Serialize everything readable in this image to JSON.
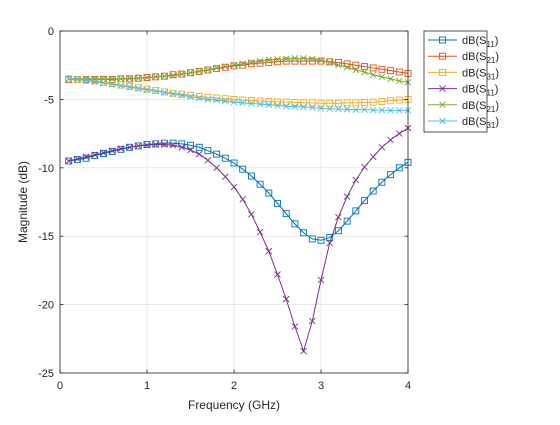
{
  "chart_data": {
    "type": "line",
    "xlabel": "Frequency (GHz)",
    "ylabel": "Magnitude (dB)",
    "xlim": [
      0,
      4
    ],
    "ylim": [
      -25,
      0
    ],
    "xticks": [
      0,
      1,
      2,
      3,
      4
    ],
    "yticks": [
      0,
      -5,
      -10,
      -15,
      -20,
      -25
    ],
    "grid": true,
    "legend_position": "outside-top-right",
    "x": [
      0.1,
      0.2,
      0.3,
      0.4,
      0.5,
      0.6,
      0.7,
      0.8,
      0.9,
      1.0,
      1.1,
      1.2,
      1.3,
      1.4,
      1.5,
      1.6,
      1.7,
      1.8,
      1.9,
      2.0,
      2.1,
      2.2,
      2.3,
      2.4,
      2.5,
      2.6,
      2.7,
      2.8,
      2.9,
      3.0,
      3.1,
      3.2,
      3.3,
      3.4,
      3.5,
      3.6,
      3.7,
      3.8,
      3.9,
      4.0
    ],
    "series": [
      {
        "name": "dB(S11)",
        "label_base": "dB(S",
        "label_sub": "11",
        "label_end": ")",
        "color": "#0072BD",
        "marker": "square",
        "values": [
          -9.5,
          -9.4,
          -9.3,
          -9.1,
          -8.95,
          -8.8,
          -8.65,
          -8.5,
          -8.4,
          -8.3,
          -8.25,
          -8.2,
          -8.2,
          -8.25,
          -8.35,
          -8.5,
          -8.75,
          -9.0,
          -9.3,
          -9.65,
          -10.1,
          -10.6,
          -11.2,
          -11.85,
          -12.6,
          -13.35,
          -14.1,
          -14.75,
          -15.2,
          -15.3,
          -15.1,
          -14.6,
          -13.9,
          -13.15,
          -12.4,
          -11.7,
          -11.05,
          -10.5,
          -10.0,
          -9.6
        ]
      },
      {
        "name": "dB(S21)",
        "label_base": "dB(S",
        "label_sub": "21",
        "label_end": ")",
        "color": "#D95319",
        "marker": "square",
        "values": [
          -3.55,
          -3.55,
          -3.55,
          -3.55,
          -3.55,
          -3.55,
          -3.5,
          -3.5,
          -3.45,
          -3.4,
          -3.35,
          -3.3,
          -3.2,
          -3.15,
          -3.05,
          -2.95,
          -2.85,
          -2.75,
          -2.65,
          -2.55,
          -2.5,
          -2.4,
          -2.35,
          -2.3,
          -2.25,
          -2.2,
          -2.2,
          -2.2,
          -2.2,
          -2.2,
          -2.25,
          -2.3,
          -2.4,
          -2.5,
          -2.6,
          -2.7,
          -2.8,
          -2.9,
          -3.0,
          -3.1
        ]
      },
      {
        "name": "dB(S31)",
        "label_base": "dB(S",
        "label_sub": "31",
        "label_end": ")",
        "color": "#EDB120",
        "marker": "square",
        "values": [
          -3.5,
          -3.55,
          -3.6,
          -3.65,
          -3.75,
          -3.85,
          -3.95,
          -4.05,
          -4.15,
          -4.25,
          -4.35,
          -4.45,
          -4.55,
          -4.62,
          -4.7,
          -4.78,
          -4.85,
          -4.9,
          -4.95,
          -5.0,
          -5.05,
          -5.08,
          -5.12,
          -5.15,
          -5.18,
          -5.2,
          -5.22,
          -5.25,
          -5.25,
          -5.28,
          -5.28,
          -5.28,
          -5.25,
          -5.25,
          -5.22,
          -5.2,
          -5.15,
          -5.1,
          -5.05,
          -5.0
        ]
      },
      {
        "name": "dB(S11)",
        "label_base": "dB(S",
        "label_sub": "11",
        "label_end": ")",
        "color": "#7E2F8E",
        "marker": "x",
        "values": [
          -9.5,
          -9.35,
          -9.2,
          -9.05,
          -8.9,
          -8.75,
          -8.6,
          -8.5,
          -8.4,
          -8.35,
          -8.3,
          -8.3,
          -8.35,
          -8.5,
          -8.7,
          -9.0,
          -9.45,
          -10.0,
          -10.65,
          -11.4,
          -12.3,
          -13.4,
          -14.7,
          -16.1,
          -17.8,
          -19.6,
          -21.6,
          -23.4,
          -21.2,
          -18.2,
          -15.5,
          -13.6,
          -12.1,
          -10.9,
          -9.95,
          -9.2,
          -8.5,
          -7.95,
          -7.5,
          -7.1
        ]
      },
      {
        "name": "dB(S21)",
        "label_base": "dB(S",
        "label_sub": "21",
        "label_end": ")",
        "color": "#77AC30",
        "marker": "x",
        "values": [
          -3.5,
          -3.5,
          -3.5,
          -3.5,
          -3.5,
          -3.5,
          -3.5,
          -3.45,
          -3.45,
          -3.4,
          -3.35,
          -3.3,
          -3.25,
          -3.15,
          -3.05,
          -2.95,
          -2.85,
          -2.7,
          -2.6,
          -2.5,
          -2.4,
          -2.3,
          -2.2,
          -2.12,
          -2.07,
          -2.03,
          -2.0,
          -2.0,
          -2.05,
          -2.15,
          -2.3,
          -2.5,
          -2.65,
          -2.85,
          -3.0,
          -3.2,
          -3.35,
          -3.5,
          -3.65,
          -3.75
        ]
      },
      {
        "name": "dB(S31)",
        "label_base": "dB(S",
        "label_sub": "31",
        "label_end": ")",
        "color": "#4DBEEE",
        "marker": "x",
        "values": [
          -3.5,
          -3.55,
          -3.6,
          -3.7,
          -3.8,
          -3.9,
          -4.0,
          -4.1,
          -4.2,
          -4.3,
          -4.4,
          -4.5,
          -4.6,
          -4.7,
          -4.8,
          -4.9,
          -5.0,
          -5.05,
          -5.12,
          -5.2,
          -5.25,
          -5.3,
          -5.35,
          -5.4,
          -5.45,
          -5.5,
          -5.52,
          -5.55,
          -5.6,
          -5.65,
          -5.68,
          -5.7,
          -5.72,
          -5.75,
          -5.75,
          -5.78,
          -5.78,
          -5.8,
          -5.8,
          -5.8
        ]
      }
    ]
  }
}
